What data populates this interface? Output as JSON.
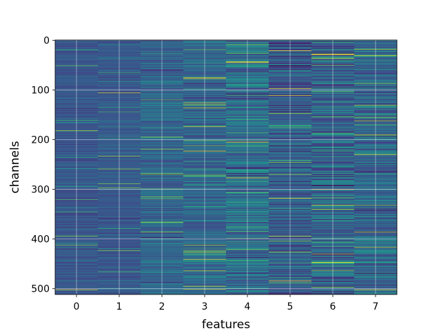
{
  "chart_data": {
    "type": "heatmap",
    "title": "",
    "xlabel": "features",
    "ylabel": "channels",
    "x_categories": [
      "0",
      "1",
      "2",
      "3",
      "4",
      "5",
      "6",
      "7"
    ],
    "y_range": [
      0,
      512
    ],
    "y_ticks": [
      0,
      100,
      200,
      300,
      400,
      500
    ],
    "y_inverted": true,
    "grid": true,
    "colormap": "viridis",
    "n_columns": 8,
    "n_rows": 512,
    "column_means": [
      0.27,
      0.28,
      0.33,
      0.33,
      0.37,
      0.29,
      0.33,
      0.33
    ],
    "column_spread": [
      0.05,
      0.05,
      0.08,
      0.09,
      0.13,
      0.11,
      0.14,
      0.11
    ]
  }
}
